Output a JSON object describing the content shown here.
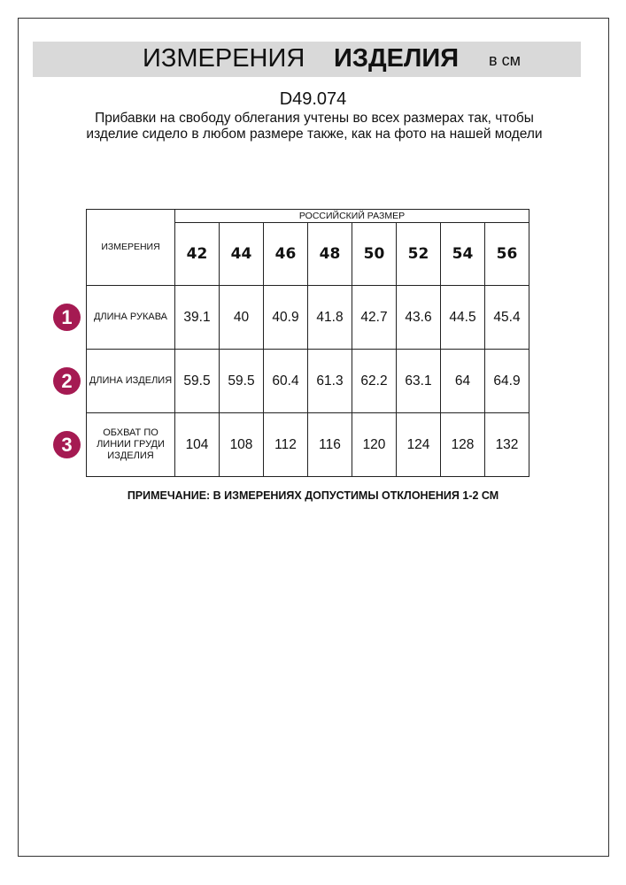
{
  "header": {
    "title_regular": "ИЗМЕРЕНИЯ",
    "title_bold": "ИЗДЕЛИЯ",
    "unit": "в см"
  },
  "article": "D49.074",
  "description": "Прибавки на свободу облегания учтены во всех размерах так, чтобы изделие сидело в любом размере также, как на фото на нашей модели",
  "table": {
    "corner_label": "ИЗМЕРЕНИЯ",
    "group_label": "РОССИЙСКИЙ РАЗМЕР",
    "sizes": [
      "42",
      "44",
      "46",
      "48",
      "50",
      "52",
      "54",
      "56"
    ],
    "rows": [
      {
        "num": "1",
        "label": "ДЛИНА РУКАВА",
        "values": [
          "39.1",
          "40",
          "40.9",
          "41.8",
          "42.7",
          "43.6",
          "44.5",
          "45.4"
        ]
      },
      {
        "num": "2",
        "label": "ДЛИНА ИЗДЕЛИЯ",
        "values": [
          "59.5",
          "59.5",
          "60.4",
          "61.3",
          "62.2",
          "63.1",
          "64",
          "64.9"
        ]
      },
      {
        "num": "3",
        "label": "ОБХВАТ ПО ЛИНИИ ГРУДИ ИЗДЕЛИЯ",
        "values": [
          "104",
          "108",
          "112",
          "116",
          "120",
          "124",
          "128",
          "132"
        ]
      }
    ]
  },
  "note": "ПРИМЕЧАНИЕ: В ИЗМЕРЕНИЯХ ДОПУСТИМЫ ОТКЛОНЕНИЯ 1-2 СМ",
  "colors": {
    "accent": "#a51a52",
    "header_bg": "#d9d9d9"
  }
}
